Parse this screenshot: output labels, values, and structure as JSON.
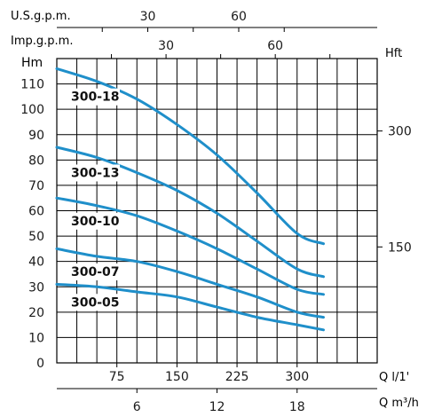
{
  "chart_data": {
    "type": "line",
    "title": "",
    "units": {
      "usgpm": "U.S.g.p.m.",
      "impgpm": "Imp.g.p.m.",
      "hm": "Hm",
      "hft": "Hft",
      "lmin": "Q l/1'",
      "m3h": "Q m³/h"
    },
    "x": {
      "label": "Q l/1'",
      "range": [
        0,
        400
      ],
      "ticks": [
        75,
        150,
        225,
        300
      ]
    },
    "x2": {
      "label": "Q m³/h",
      "ticks": [
        6,
        12,
        18
      ]
    },
    "top_axes": {
      "usgpm_ticks": [
        30,
        60
      ],
      "impgpm_ticks": [
        30,
        60
      ]
    },
    "y": {
      "label": "Hm",
      "range": [
        0,
        120
      ],
      "ticks": [
        0,
        10,
        20,
        30,
        40,
        50,
        60,
        70,
        80,
        90,
        100,
        110
      ]
    },
    "y_right": {
      "label": "Hft",
      "ticks": [
        150,
        300
      ]
    },
    "grid": true,
    "series_color": "#1f8fca",
    "series": [
      {
        "name": "300-18",
        "x": [
          0,
          50,
          100,
          150,
          200,
          250,
          300,
          333
        ],
        "values": [
          116,
          111,
          104,
          94,
          82,
          67,
          51,
          47
        ]
      },
      {
        "name": "300-13",
        "x": [
          0,
          50,
          100,
          150,
          200,
          250,
          300,
          333
        ],
        "values": [
          85,
          81,
          75,
          68,
          59,
          48,
          37,
          34
        ]
      },
      {
        "name": "300-10",
        "x": [
          0,
          50,
          100,
          150,
          200,
          250,
          300,
          333
        ],
        "values": [
          65,
          62,
          58,
          52,
          45,
          37,
          29,
          27
        ]
      },
      {
        "name": "300-07",
        "x": [
          0,
          50,
          100,
          150,
          200,
          250,
          300,
          333
        ],
        "values": [
          45,
          42,
          40,
          36,
          31,
          26,
          20,
          18
        ]
      },
      {
        "name": "300-05",
        "x": [
          0,
          50,
          100,
          150,
          200,
          250,
          300,
          333
        ],
        "values": [
          31,
          30,
          28,
          26,
          22,
          18,
          15,
          13
        ]
      }
    ]
  }
}
